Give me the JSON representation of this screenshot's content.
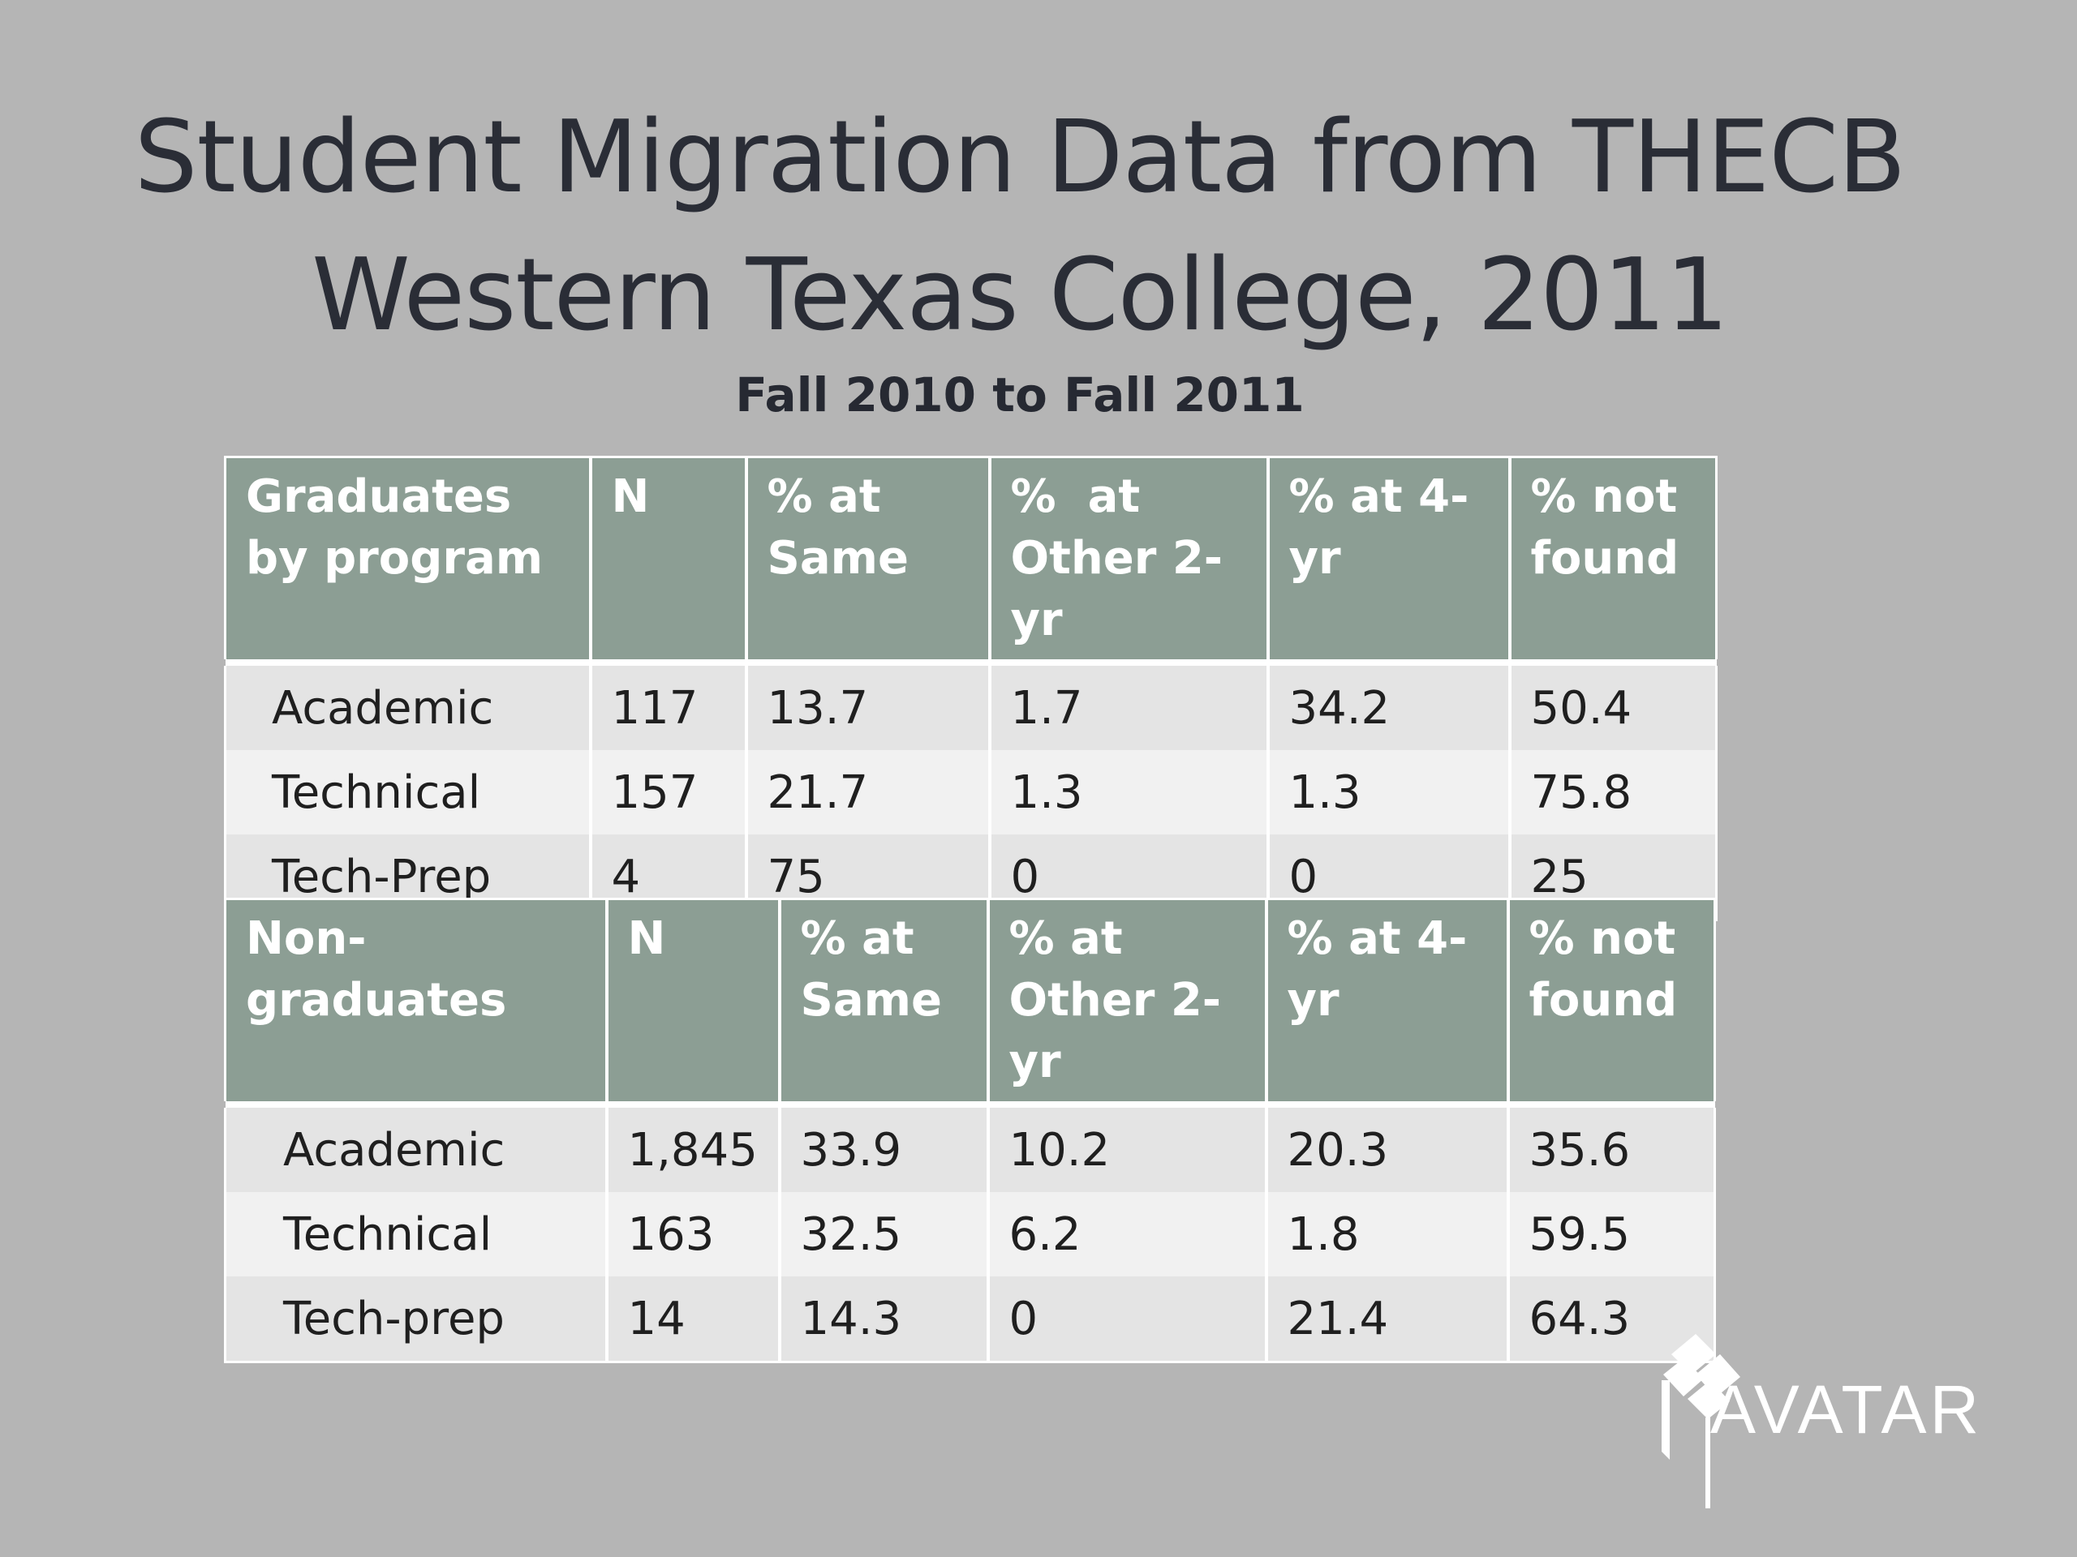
{
  "title": {
    "line1": "Student Migration Data from THECB",
    "line2": "Western Texas College, 2011"
  },
  "subtitle": "Fall 2010 to Fall 2011",
  "graduates_table": {
    "headers": [
      "Graduates by program",
      "N",
      "% at Same",
      "%  at Other 2-yr",
      "% at 4-yr",
      "% not found"
    ],
    "rows": [
      [
        "Academic",
        "117",
        "13.7",
        "1.7",
        "34.2",
        "50.4"
      ],
      [
        "Technical",
        "157",
        "21.7",
        "1.3",
        "1.3",
        "75.8"
      ],
      [
        "Tech-Prep",
        "4",
        "75",
        "0",
        "0",
        "25"
      ]
    ]
  },
  "nongraduates_table": {
    "headers": [
      "Non-graduates",
      "N",
      "% at Same",
      "% at Other 2-yr",
      "% at 4-yr",
      "% not found"
    ],
    "rows": [
      [
        "Academic",
        "1,845",
        "33.9",
        "10.2",
        "20.3",
        "35.6"
      ],
      [
        "Technical",
        "163",
        "32.5",
        "6.2",
        "1.8",
        "59.5"
      ],
      [
        "Tech-prep",
        "14",
        "14.3",
        "0",
        "21.4",
        "64.3"
      ]
    ]
  },
  "logo": {
    "text": "AVATAR",
    "icon": "avatar-flag-logo",
    "color": "#ffffff"
  },
  "colors": {
    "background": "#b5b5b5",
    "header_fill": "#8c9e94",
    "row_odd": "#e4e4e4",
    "row_even": "#f1f1f1",
    "title_text": "#2a2d36"
  }
}
